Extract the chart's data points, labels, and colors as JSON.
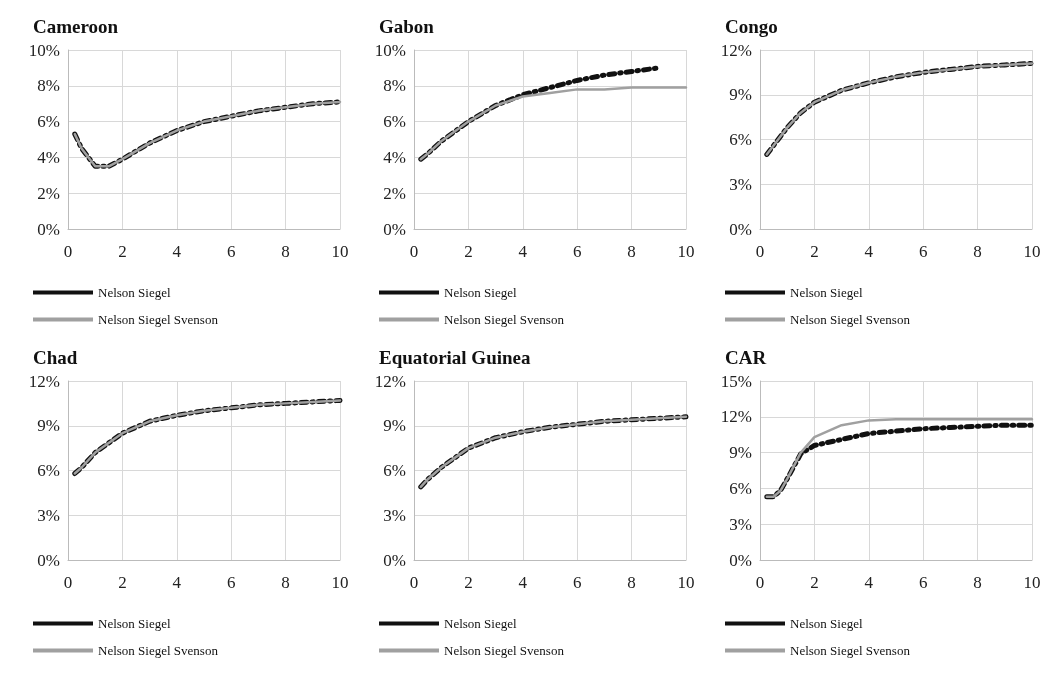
{
  "chart_data": [
    {
      "type": "line",
      "title": "Cameroon",
      "x": [
        0.25,
        0.5,
        1,
        1.5,
        2,
        3,
        4,
        5,
        6,
        7,
        8,
        9,
        10
      ],
      "xlim": [
        0,
        10
      ],
      "xticks": [
        0,
        2,
        4,
        6,
        8,
        10
      ],
      "ylim": [
        0,
        10
      ],
      "yticks": [
        {
          "value": 0,
          "label": "0%"
        },
        {
          "value": 2,
          "label": "2%"
        },
        {
          "value": 4,
          "label": "4%"
        },
        {
          "value": 6,
          "label": "6%"
        },
        {
          "value": 8,
          "label": "8%"
        },
        {
          "value": 10,
          "label": "10%"
        }
      ],
      "grid": true,
      "legend": "bottom",
      "marker": "none",
      "series": [
        {
          "name": "Nelson Siegel",
          "color": "#111111",
          "line_style": "dashed",
          "values": [
            5.3,
            4.5,
            3.5,
            3.5,
            3.9,
            4.8,
            5.5,
            6.0,
            6.3,
            6.6,
            6.8,
            7.0,
            7.1
          ]
        },
        {
          "name": "Nelson Siegel Svenson",
          "color": "#a0a0a0",
          "line_style": "solid",
          "values": [
            5.3,
            4.5,
            3.5,
            3.5,
            3.9,
            4.8,
            5.5,
            6.0,
            6.3,
            6.6,
            6.8,
            7.0,
            7.1
          ]
        }
      ]
    },
    {
      "type": "line",
      "title": "Gabon",
      "x": [
        0.25,
        0.5,
        1,
        2,
        3,
        4,
        5,
        6,
        7,
        8,
        9,
        10
      ],
      "xlim": [
        0,
        10
      ],
      "xticks": [
        0,
        2,
        4,
        6,
        8,
        10
      ],
      "ylim": [
        0,
        10
      ],
      "yticks": [
        {
          "value": 0,
          "label": "0%"
        },
        {
          "value": 2,
          "label": "2%"
        },
        {
          "value": 4,
          "label": "4%"
        },
        {
          "value": 6,
          "label": "6%"
        },
        {
          "value": 8,
          "label": "8%"
        },
        {
          "value": 10,
          "label": "10%"
        }
      ],
      "grid": true,
      "legend": "bottom",
      "marker": "none",
      "series": [
        {
          "name": "Nelson Siegel",
          "color": "#111111",
          "line_style": "dashed",
          "values": [
            3.9,
            4.2,
            4.9,
            6.0,
            6.9,
            7.5,
            7.9,
            8.3,
            8.6,
            8.8,
            9.0,
            null
          ]
        },
        {
          "name": "Nelson Siegel Svenson",
          "color": "#a0a0a0",
          "line_style": "solid",
          "values": [
            3.9,
            4.2,
            4.9,
            6.0,
            6.9,
            7.4,
            7.6,
            7.8,
            7.8,
            7.9,
            7.9,
            7.9
          ]
        }
      ]
    },
    {
      "type": "line",
      "title": "Congo",
      "x": [
        0.25,
        0.5,
        1,
        1.5,
        2,
        3,
        4,
        5,
        6,
        7,
        8,
        9,
        10
      ],
      "xlim": [
        0,
        10
      ],
      "xticks": [
        0,
        2,
        4,
        6,
        8,
        10
      ],
      "ylim": [
        0,
        12
      ],
      "yticks": [
        {
          "value": 0,
          "label": "0%"
        },
        {
          "value": 3,
          "label": "3%"
        },
        {
          "value": 6,
          "label": "6%"
        },
        {
          "value": 9,
          "label": "9%"
        },
        {
          "value": 12,
          "label": "12%"
        }
      ],
      "grid": true,
      "legend": "bottom",
      "marker": "none",
      "series": [
        {
          "name": "Nelson Siegel",
          "color": "#111111",
          "line_style": "dashed",
          "values": [
            5.0,
            5.6,
            6.8,
            7.8,
            8.5,
            9.3,
            9.8,
            10.2,
            10.5,
            10.7,
            10.9,
            11.0,
            11.1
          ]
        },
        {
          "name": "Nelson Siegel Svenson",
          "color": "#a0a0a0",
          "line_style": "solid",
          "values": [
            5.0,
            5.6,
            6.8,
            7.8,
            8.5,
            9.3,
            9.8,
            10.2,
            10.5,
            10.7,
            10.9,
            11.0,
            11.1
          ]
        }
      ]
    },
    {
      "type": "line",
      "title": "Chad",
      "x": [
        0.25,
        0.5,
        1,
        2,
        3,
        4,
        5,
        6,
        7,
        8,
        9,
        10
      ],
      "xlim": [
        0,
        10
      ],
      "xticks": [
        0,
        2,
        4,
        6,
        8,
        10
      ],
      "ylim": [
        0,
        12
      ],
      "yticks": [
        {
          "value": 0,
          "label": "0%"
        },
        {
          "value": 3,
          "label": "3%"
        },
        {
          "value": 6,
          "label": "6%"
        },
        {
          "value": 9,
          "label": "9%"
        },
        {
          "value": 12,
          "label": "12%"
        }
      ],
      "grid": true,
      "legend": "bottom",
      "marker": "none",
      "series": [
        {
          "name": "Nelson Siegel",
          "color": "#111111",
          "line_style": "dashed",
          "values": [
            5.8,
            6.2,
            7.2,
            8.5,
            9.3,
            9.7,
            10.0,
            10.2,
            10.4,
            10.5,
            10.6,
            10.7
          ]
        },
        {
          "name": "Nelson Siegel Svenson",
          "color": "#a0a0a0",
          "line_style": "solid",
          "values": [
            5.8,
            6.2,
            7.2,
            8.5,
            9.3,
            9.7,
            10.0,
            10.2,
            10.4,
            10.5,
            10.6,
            10.7
          ]
        }
      ]
    },
    {
      "type": "line",
      "title": "Equatorial Guinea",
      "x": [
        0.25,
        0.5,
        1,
        2,
        3,
        4,
        5,
        6,
        7,
        8,
        9,
        10
      ],
      "xlim": [
        0,
        10
      ],
      "xticks": [
        0,
        2,
        4,
        6,
        8,
        10
      ],
      "ylim": [
        0,
        12
      ],
      "yticks": [
        {
          "value": 0,
          "label": "0%"
        },
        {
          "value": 3,
          "label": "3%"
        },
        {
          "value": 6,
          "label": "6%"
        },
        {
          "value": 9,
          "label": "9%"
        },
        {
          "value": 12,
          "label": "12%"
        }
      ],
      "grid": true,
      "legend": "bottom",
      "marker": "none",
      "series": [
        {
          "name": "Nelson Siegel",
          "color": "#111111",
          "line_style": "dashed",
          "values": [
            4.9,
            5.4,
            6.2,
            7.5,
            8.2,
            8.6,
            8.9,
            9.1,
            9.3,
            9.4,
            9.5,
            9.6
          ]
        },
        {
          "name": "Nelson Siegel Svenson",
          "color": "#a0a0a0",
          "line_style": "solid",
          "values": [
            4.9,
            5.4,
            6.2,
            7.5,
            8.2,
            8.6,
            8.9,
            9.1,
            9.3,
            9.4,
            9.5,
            9.6
          ]
        }
      ]
    },
    {
      "type": "line",
      "title": "CAR",
      "x": [
        0.25,
        0.5,
        0.75,
        1,
        1.5,
        2,
        3,
        4,
        5,
        6,
        7,
        8,
        9,
        10
      ],
      "xlim": [
        0,
        10
      ],
      "xticks": [
        0,
        2,
        4,
        6,
        8,
        10
      ],
      "ylim": [
        0,
        15
      ],
      "yticks": [
        {
          "value": 0,
          "label": "0%"
        },
        {
          "value": 3,
          "label": "3%"
        },
        {
          "value": 6,
          "label": "6%"
        },
        {
          "value": 9,
          "label": "9%"
        },
        {
          "value": 12,
          "label": "12%"
        },
        {
          "value": 15,
          "label": "15%"
        }
      ],
      "grid": true,
      "legend": "bottom",
      "marker": "none",
      "series": [
        {
          "name": "Nelson Siegel",
          "color": "#111111",
          "line_style": "dashed",
          "values": [
            5.3,
            5.3,
            5.8,
            6.8,
            8.9,
            9.6,
            10.1,
            10.6,
            10.8,
            11.0,
            11.1,
            11.2,
            11.3,
            11.3
          ]
        },
        {
          "name": "Nelson Siegel Svenson",
          "color": "#a0a0a0",
          "line_style": "solid",
          "values": [
            5.3,
            5.3,
            5.8,
            6.8,
            9.0,
            10.3,
            11.3,
            11.7,
            11.8,
            11.8,
            11.8,
            11.8,
            11.8,
            11.8
          ]
        }
      ]
    }
  ]
}
